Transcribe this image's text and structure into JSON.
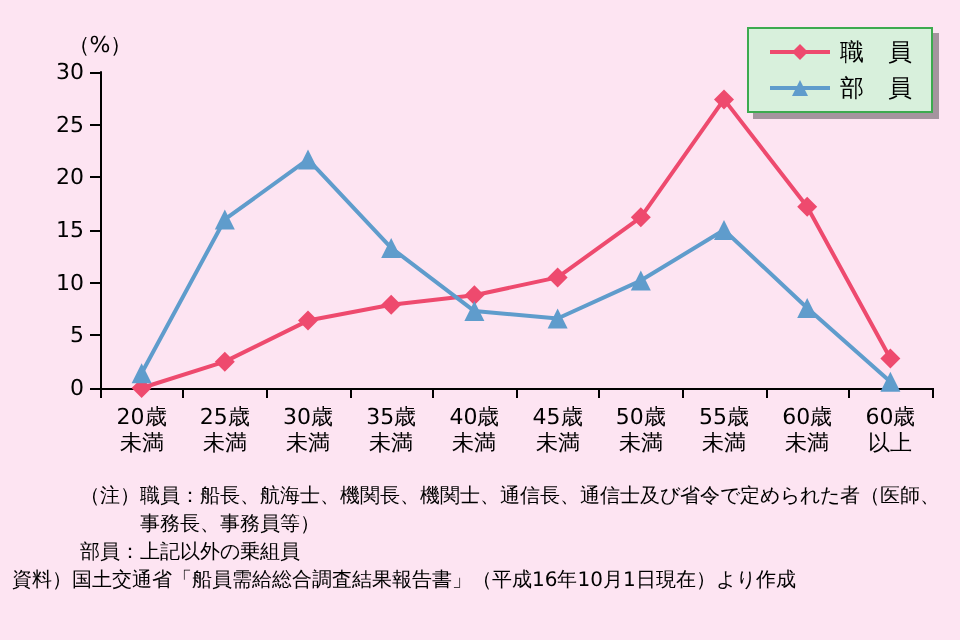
{
  "chart_data": {
    "type": "line",
    "ylabel": "（%）",
    "categories": [
      "20歳未満",
      "25歳未満",
      "30歳未満",
      "35歳未満",
      "40歳未満",
      "45歳未満",
      "50歳未満",
      "55歳未満",
      "60歳未満",
      "60歳以上"
    ],
    "series": [
      {
        "name": "職　員",
        "color": "#ee4a6e",
        "marker": "diamond",
        "values": [
          0,
          2.5,
          6.4,
          7.9,
          8.8,
          10.5,
          16.2,
          27.4,
          17.2,
          2.8
        ]
      },
      {
        "name": "部　員",
        "color": "#5f9ccc",
        "marker": "triangle",
        "values": [
          1.4,
          16.0,
          21.7,
          13.3,
          7.3,
          6.6,
          10.2,
          15.0,
          7.6,
          0.6
        ]
      }
    ],
    "ylim": [
      0,
      30
    ],
    "yticks": [
      0,
      5,
      10,
      15,
      20,
      25,
      30
    ],
    "grid": false,
    "legend": "top right",
    "annotations": [
      "（注）職員：船長、航海士、機関長、機関士、通信長、通信士及び省令で定められた者（医師、事務長、事務員等）",
      "部員：上記以外の乗組員",
      "資料）国土交通省「船員需給総合調査結果報告書」（平成16年10月1日現在）より作成"
    ]
  }
}
